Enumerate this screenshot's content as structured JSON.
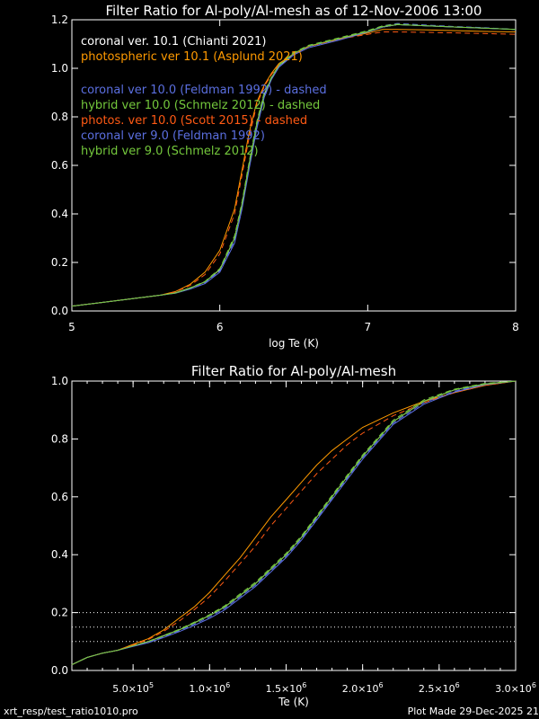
{
  "chart_data": [
    {
      "type": "line",
      "title": "Filter Ratio for Al-poly/Al-mesh as of 12-Nov-2006 13:00",
      "xlabel": "log Te (K)",
      "ylabel": "",
      "xlim": [
        5,
        8
      ],
      "ylim": [
        0,
        1.2
      ],
      "x_ticks": [
        "5",
        "6",
        "7",
        "8"
      ],
      "y_ticks": [
        "0.0",
        "0.2",
        "0.4",
        "0.6",
        "0.8",
        "1.0",
        "1.2"
      ],
      "legend_position": "top-left",
      "legend": [
        {
          "text": "coronal ver. 10.1 (Chianti 2021)",
          "color": "#ffffff"
        },
        {
          "text": "photospheric ver 10.1 (Asplund 2021)",
          "color": "#ff9a00"
        },
        {
          "text": "",
          "color": ""
        },
        {
          "text": "coronal ver 10.0 (Feldman 1992) - dashed",
          "color": "#5b6fe0"
        },
        {
          "text": "hybrid ver 10.0 (Schmelz 2012) - dashed",
          "color": "#74c83c"
        },
        {
          "text": "photos. ver 10.0 (Scott 2015) - dashed",
          "color": "#ff5a14"
        },
        {
          "text": "coronal ver 9.0 (Feldman 1992)",
          "color": "#5b6fe0"
        },
        {
          "text": "hybrid ver 9.0 (Schmelz 2012)",
          "color": "#74c83c"
        }
      ],
      "series": [
        {
          "name": "coronal ver. 10.1 (Chianti 2021)",
          "color": "#ffffff",
          "dashed": false,
          "x": [
            5.0,
            5.2,
            5.4,
            5.6,
            5.7,
            5.8,
            5.9,
            6.0,
            6.1,
            6.15,
            6.2,
            6.25,
            6.3,
            6.35,
            6.4,
            6.5,
            6.6,
            6.8,
            7.0,
            7.1,
            7.2,
            7.4,
            7.6,
            7.8,
            8.0
          ],
          "values": [
            0.02,
            0.035,
            0.05,
            0.065,
            0.075,
            0.095,
            0.12,
            0.17,
            0.3,
            0.44,
            0.61,
            0.77,
            0.89,
            0.96,
            1.01,
            1.06,
            1.09,
            1.12,
            1.15,
            1.17,
            1.18,
            1.175,
            1.17,
            1.165,
            1.16
          ]
        },
        {
          "name": "photospheric ver 10.1 (Asplund 2021)",
          "color": "#ff9a00",
          "dashed": false,
          "x": [
            5.0,
            5.2,
            5.4,
            5.6,
            5.7,
            5.8,
            5.9,
            6.0,
            6.1,
            6.15,
            6.2,
            6.25,
            6.3,
            6.35,
            6.4,
            6.5,
            6.6,
            6.8,
            7.0,
            7.1,
            7.2,
            7.4,
            7.6,
            7.8,
            8.0
          ],
          "values": [
            0.02,
            0.035,
            0.05,
            0.065,
            0.08,
            0.11,
            0.16,
            0.25,
            0.42,
            0.58,
            0.74,
            0.86,
            0.93,
            0.98,
            1.02,
            1.06,
            1.09,
            1.12,
            1.145,
            1.16,
            1.16,
            1.158,
            1.155,
            1.152,
            1.15
          ]
        },
        {
          "name": "coronal ver 10.0 (Feldman 1992) - dashed",
          "color": "#5b6fe0",
          "dashed": true,
          "x": [
            5.0,
            5.2,
            5.4,
            5.6,
            5.7,
            5.8,
            5.9,
            6.0,
            6.1,
            6.15,
            6.2,
            6.25,
            6.3,
            6.35,
            6.4,
            6.5,
            6.6,
            6.8,
            7.0,
            7.1,
            7.2,
            7.4,
            7.6,
            7.8,
            8.0
          ],
          "values": [
            0.02,
            0.035,
            0.05,
            0.065,
            0.074,
            0.093,
            0.117,
            0.165,
            0.29,
            0.43,
            0.6,
            0.76,
            0.89,
            0.96,
            1.01,
            1.06,
            1.09,
            1.12,
            1.155,
            1.175,
            1.185,
            1.178,
            1.172,
            1.167,
            1.16
          ]
        },
        {
          "name": "hybrid ver 10.0 (Schmelz 2012) - dashed",
          "color": "#74c83c",
          "dashed": true,
          "x": [
            5.0,
            5.2,
            5.4,
            5.6,
            5.7,
            5.8,
            5.9,
            6.0,
            6.1,
            6.15,
            6.2,
            6.25,
            6.3,
            6.35,
            6.4,
            6.5,
            6.6,
            6.8,
            7.0,
            7.1,
            7.2,
            7.4,
            7.6,
            7.8,
            8.0
          ],
          "values": [
            0.02,
            0.035,
            0.05,
            0.065,
            0.075,
            0.096,
            0.122,
            0.175,
            0.31,
            0.45,
            0.62,
            0.78,
            0.9,
            0.965,
            1.015,
            1.065,
            1.095,
            1.125,
            1.155,
            1.175,
            1.182,
            1.176,
            1.17,
            1.165,
            1.16
          ]
        },
        {
          "name": "photos. ver 10.0 (Scott 2015) - dashed",
          "color": "#ff5a14",
          "dashed": true,
          "x": [
            5.0,
            5.2,
            5.4,
            5.6,
            5.7,
            5.8,
            5.9,
            6.0,
            6.1,
            6.15,
            6.2,
            6.25,
            6.3,
            6.35,
            6.4,
            6.5,
            6.6,
            6.8,
            7.0,
            7.1,
            7.2,
            7.4,
            7.6,
            7.8,
            8.0
          ],
          "values": [
            0.02,
            0.035,
            0.05,
            0.065,
            0.079,
            0.105,
            0.15,
            0.235,
            0.4,
            0.56,
            0.72,
            0.85,
            0.925,
            0.975,
            1.015,
            1.06,
            1.09,
            1.12,
            1.14,
            1.15,
            1.15,
            1.148,
            1.146,
            1.143,
            1.14
          ]
        },
        {
          "name": "coronal ver 9.0 (Feldman 1992)",
          "color": "#5b6fe0",
          "dashed": false,
          "x": [
            5.0,
            5.2,
            5.4,
            5.6,
            5.7,
            5.8,
            5.9,
            6.0,
            6.1,
            6.15,
            6.2,
            6.25,
            6.3,
            6.35,
            6.4,
            6.5,
            6.6,
            6.8,
            7.0,
            7.1,
            7.2,
            7.4,
            7.6,
            7.8,
            8.0
          ],
          "values": [
            0.02,
            0.035,
            0.05,
            0.065,
            0.073,
            0.09,
            0.113,
            0.16,
            0.28,
            0.42,
            0.59,
            0.75,
            0.88,
            0.955,
            1.005,
            1.055,
            1.085,
            1.115,
            1.15,
            1.17,
            1.18,
            1.175,
            1.17,
            1.165,
            1.16
          ]
        },
        {
          "name": "hybrid ver 9.0 (Schmelz 2012)",
          "color": "#74c83c",
          "dashed": false,
          "x": [
            5.0,
            5.2,
            5.4,
            5.6,
            5.7,
            5.8,
            5.9,
            6.0,
            6.1,
            6.15,
            6.2,
            6.25,
            6.3,
            6.35,
            6.4,
            6.5,
            6.6,
            6.8,
            7.0,
            7.1,
            7.2,
            7.4,
            7.6,
            7.8,
            8.0
          ],
          "values": [
            0.02,
            0.035,
            0.05,
            0.065,
            0.074,
            0.094,
            0.12,
            0.172,
            0.3,
            0.44,
            0.61,
            0.77,
            0.895,
            0.962,
            1.012,
            1.062,
            1.092,
            1.122,
            1.152,
            1.172,
            1.18,
            1.175,
            1.17,
            1.165,
            1.16
          ]
        }
      ]
    },
    {
      "type": "line",
      "title": "Filter Ratio for Al-poly/Al-mesh",
      "xlabel": "Te (K)",
      "ylabel": "",
      "xlim": [
        100000,
        3000000
      ],
      "ylim": [
        0,
        1.0
      ],
      "x_ticks": [
        {
          "value": 500000,
          "mantissa": "5.0",
          "exponent": "5"
        },
        {
          "value": 1000000,
          "mantissa": "1.0",
          "exponent": "6"
        },
        {
          "value": 1500000,
          "mantissa": "1.5",
          "exponent": "6"
        },
        {
          "value": 2000000,
          "mantissa": "2.0",
          "exponent": "6"
        },
        {
          "value": 2500000,
          "mantissa": "2.5",
          "exponent": "6"
        },
        {
          "value": 3000000,
          "mantissa": "3.0",
          "exponent": "6"
        }
      ],
      "y_ticks": [
        "0.0",
        "0.2",
        "0.4",
        "0.6",
        "0.8",
        "1.0"
      ],
      "reference_lines": [
        0.1,
        0.15,
        0.2
      ],
      "series": [
        {
          "name": "coronal ver. 10.1 (Chianti 2021)",
          "color": "#ffffff",
          "dashed": false,
          "x": [
            100000,
            200000,
            300000,
            400000,
            500000,
            600000,
            700000,
            800000,
            900000,
            1000000,
            1100000,
            1200000,
            1300000,
            1400000,
            1500000,
            1600000,
            1700000,
            1800000,
            1900000,
            2000000,
            2200000,
            2400000,
            2600000,
            2800000,
            3000000
          ],
          "values": [
            0.02,
            0.045,
            0.06,
            0.07,
            0.085,
            0.1,
            0.12,
            0.14,
            0.165,
            0.19,
            0.22,
            0.26,
            0.3,
            0.35,
            0.4,
            0.46,
            0.53,
            0.6,
            0.67,
            0.74,
            0.86,
            0.93,
            0.97,
            0.99,
            1.0
          ]
        },
        {
          "name": "photospheric ver 10.1 (Asplund 2021)",
          "color": "#ff9a00",
          "dashed": false,
          "x": [
            100000,
            200000,
            300000,
            400000,
            500000,
            600000,
            700000,
            800000,
            900000,
            1000000,
            1100000,
            1200000,
            1300000,
            1400000,
            1500000,
            1600000,
            1700000,
            1800000,
            1900000,
            2000000,
            2200000,
            2400000,
            2600000,
            2800000,
            3000000
          ],
          "values": [
            0.02,
            0.045,
            0.06,
            0.07,
            0.09,
            0.11,
            0.14,
            0.18,
            0.22,
            0.27,
            0.33,
            0.39,
            0.46,
            0.53,
            0.59,
            0.65,
            0.71,
            0.76,
            0.8,
            0.84,
            0.89,
            0.93,
            0.96,
            0.985,
            1.0
          ]
        },
        {
          "name": "coronal ver 10.0 (Feldman 1992) - dashed",
          "color": "#5b6fe0",
          "dashed": true,
          "x": [
            100000,
            200000,
            300000,
            400000,
            500000,
            600000,
            700000,
            800000,
            900000,
            1000000,
            1100000,
            1200000,
            1300000,
            1400000,
            1500000,
            1600000,
            1700000,
            1800000,
            1900000,
            2000000,
            2200000,
            2400000,
            2600000,
            2800000,
            3000000
          ],
          "values": [
            0.02,
            0.045,
            0.06,
            0.07,
            0.084,
            0.098,
            0.117,
            0.137,
            0.16,
            0.185,
            0.215,
            0.255,
            0.295,
            0.345,
            0.395,
            0.455,
            0.525,
            0.595,
            0.665,
            0.735,
            0.855,
            0.925,
            0.965,
            0.99,
            1.0
          ]
        },
        {
          "name": "hybrid ver 10.0 (Schmelz 2012) - dashed",
          "color": "#74c83c",
          "dashed": true,
          "x": [
            100000,
            200000,
            300000,
            400000,
            500000,
            600000,
            700000,
            800000,
            900000,
            1000000,
            1100000,
            1200000,
            1300000,
            1400000,
            1500000,
            1600000,
            1700000,
            1800000,
            1900000,
            2000000,
            2200000,
            2400000,
            2600000,
            2800000,
            3000000
          ],
          "values": [
            0.02,
            0.045,
            0.06,
            0.07,
            0.086,
            0.101,
            0.121,
            0.142,
            0.167,
            0.193,
            0.224,
            0.265,
            0.305,
            0.355,
            0.405,
            0.465,
            0.535,
            0.605,
            0.675,
            0.745,
            0.865,
            0.935,
            0.972,
            0.992,
            1.0
          ]
        },
        {
          "name": "photos. ver 10.0 (Scott 2015) - dashed",
          "color": "#ff5a14",
          "dashed": true,
          "x": [
            100000,
            200000,
            300000,
            400000,
            500000,
            600000,
            700000,
            800000,
            900000,
            1000000,
            1100000,
            1200000,
            1300000,
            1400000,
            1500000,
            1600000,
            1700000,
            1800000,
            1900000,
            2000000,
            2200000,
            2400000,
            2600000,
            2800000,
            3000000
          ],
          "values": [
            0.02,
            0.045,
            0.06,
            0.07,
            0.088,
            0.107,
            0.135,
            0.17,
            0.21,
            0.255,
            0.31,
            0.37,
            0.43,
            0.5,
            0.56,
            0.62,
            0.68,
            0.73,
            0.78,
            0.82,
            0.88,
            0.925,
            0.96,
            0.985,
            1.0
          ]
        },
        {
          "name": "coronal ver 9.0 (Feldman 1992)",
          "color": "#5b6fe0",
          "dashed": false,
          "x": [
            100000,
            200000,
            300000,
            400000,
            500000,
            600000,
            700000,
            800000,
            900000,
            1000000,
            1100000,
            1200000,
            1300000,
            1400000,
            1500000,
            1600000,
            1700000,
            1800000,
            1900000,
            2000000,
            2200000,
            2400000,
            2600000,
            2800000,
            3000000
          ],
          "values": [
            0.02,
            0.045,
            0.06,
            0.07,
            0.083,
            0.096,
            0.114,
            0.134,
            0.156,
            0.18,
            0.21,
            0.25,
            0.29,
            0.34,
            0.39,
            0.45,
            0.52,
            0.59,
            0.66,
            0.73,
            0.85,
            0.92,
            0.962,
            0.988,
            1.0
          ]
        },
        {
          "name": "hybrid ver 9.0 (Schmelz 2012)",
          "color": "#74c83c",
          "dashed": false,
          "x": [
            100000,
            200000,
            300000,
            400000,
            500000,
            600000,
            700000,
            800000,
            900000,
            1000000,
            1100000,
            1200000,
            1300000,
            1400000,
            1500000,
            1600000,
            1700000,
            1800000,
            1900000,
            2000000,
            2200000,
            2400000,
            2600000,
            2800000,
            3000000
          ],
          "values": [
            0.02,
            0.045,
            0.06,
            0.07,
            0.085,
            0.1,
            0.119,
            0.14,
            0.164,
            0.19,
            0.22,
            0.26,
            0.3,
            0.35,
            0.4,
            0.46,
            0.53,
            0.6,
            0.67,
            0.74,
            0.86,
            0.93,
            0.97,
            0.99,
            1.0
          ]
        }
      ]
    }
  ],
  "footer": {
    "left": "xrt_resp/test_ratio1010.pro",
    "right": "Plot Made 29-Dec-2025 21"
  }
}
